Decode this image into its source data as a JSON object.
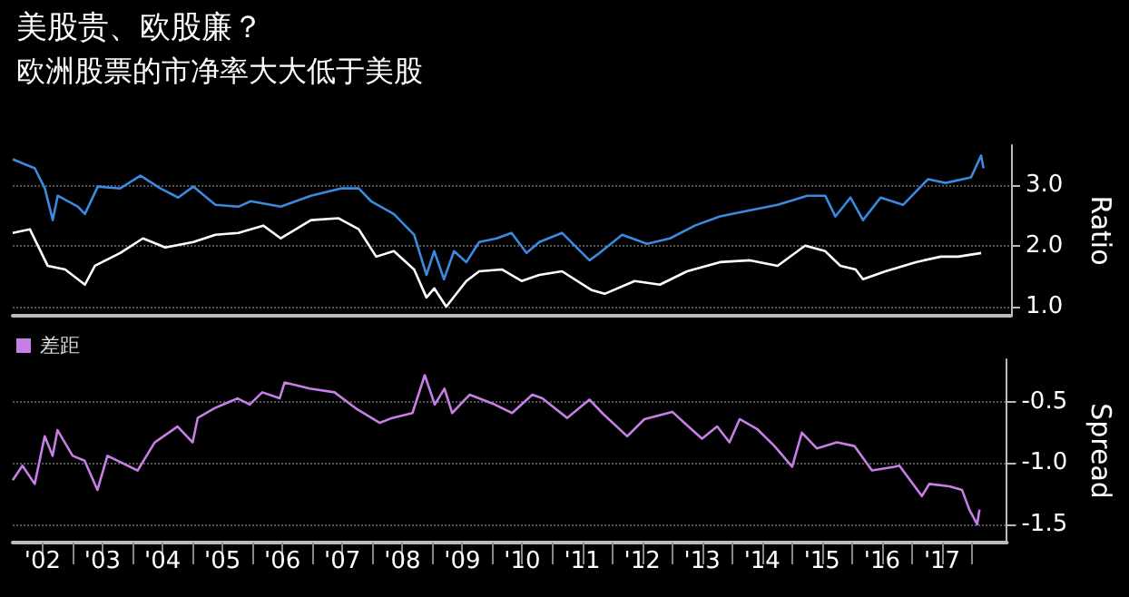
{
  "chart_data": [
    {
      "type": "line",
      "title": "美股贵、欧股廉？",
      "subtitle": "欧洲股票的市净率大大低于美股",
      "ylabel": "Ratio",
      "xlim": [
        "2002-01-01",
        "2018-08-01"
      ],
      "ylim": [
        0.85,
        3.65
      ],
      "yticks": [
        {
          "value": 1,
          "label": "1.0"
        },
        {
          "value": 2,
          "label": "2.0"
        },
        {
          "value": 3,
          "label": "3.0"
        }
      ],
      "tick_labels": "y",
      "grid": "y",
      "legend": false,
      "marker": "none",
      "line_style": "solid",
      "series": [
        {
          "color": "#ffffff",
          "x": [
            "2002-01-01",
            "2002-04-15",
            "2002-08-01",
            "2002-11-15",
            "2003-03-15",
            "2003-05-15",
            "2003-10-15",
            "2004-03-01",
            "2004-07-15",
            "2005-01-01",
            "2005-05-15",
            "2005-10-01",
            "2006-03-01",
            "2006-06-15",
            "2006-12-15",
            "2007-06-01",
            "2007-10-01",
            "2008-01-15",
            "2008-05-01",
            "2008-09-01",
            "2008-11-15",
            "2009-01-01",
            "2009-03-15",
            "2009-07-15",
            "2009-10-01",
            "2010-02-15",
            "2010-06-15",
            "2010-10-01",
            "2011-02-15",
            "2011-08-15",
            "2011-11-01",
            "2012-05-01",
            "2012-10-01",
            "2013-03-15",
            "2013-10-01",
            "2014-04-01",
            "2014-09-15",
            "2015-03-01",
            "2015-07-01",
            "2015-10-01",
            "2016-01-01",
            "2016-02-15",
            "2016-07-01",
            "2017-01-01",
            "2017-06-01",
            "2017-09-15",
            "2018-02-01"
          ],
          "values": [
            2.21,
            2.27,
            1.67,
            1.61,
            1.36,
            1.67,
            1.88,
            2.12,
            1.97,
            2.06,
            2.18,
            2.21,
            2.33,
            2.12,
            2.42,
            2.45,
            2.27,
            1.82,
            1.91,
            1.61,
            1.15,
            1.3,
            1.0,
            1.42,
            1.58,
            1.61,
            1.42,
            1.52,
            1.58,
            1.27,
            1.21,
            1.42,
            1.36,
            1.58,
            1.73,
            1.76,
            1.67,
            2.0,
            1.91,
            1.67,
            1.61,
            1.45,
            1.58,
            1.73,
            1.82,
            1.82,
            1.88
          ]
        },
        {
          "color": "#3a8ae0",
          "x": [
            "2002-01-01",
            "2002-05-15",
            "2002-07-15",
            "2002-09-01",
            "2002-10-01",
            "2003-02-01",
            "2003-03-15",
            "2003-06-01",
            "2003-10-15",
            "2004-02-15",
            "2004-06-15",
            "2004-10-01",
            "2005-01-01",
            "2005-05-15",
            "2005-10-01",
            "2005-12-15",
            "2006-06-15",
            "2006-12-15",
            "2007-06-15",
            "2007-10-01",
            "2007-12-15",
            "2008-05-01",
            "2008-09-01",
            "2008-11-15",
            "2009-01-01",
            "2009-03-01",
            "2009-05-01",
            "2009-07-15",
            "2009-10-01",
            "2010-01-15",
            "2010-04-15",
            "2010-07-15",
            "2010-10-01",
            "2011-02-15",
            "2011-08-01",
            "2011-10-01",
            "2012-02-15",
            "2012-07-15",
            "2012-12-01",
            "2013-05-01",
            "2013-10-01",
            "2014-04-01",
            "2014-09-15",
            "2015-03-15",
            "2015-07-01",
            "2015-09-01",
            "2015-12-01",
            "2016-02-15",
            "2016-06-01",
            "2016-10-15",
            "2017-03-15",
            "2017-07-01",
            "2017-12-01",
            "2018-02-01",
            "2018-02-15"
          ],
          "values": [
            3.42,
            3.27,
            2.94,
            2.42,
            2.82,
            2.64,
            2.52,
            2.97,
            2.94,
            3.15,
            2.94,
            2.79,
            2.97,
            2.67,
            2.64,
            2.73,
            2.64,
            2.82,
            2.94,
            2.94,
            2.73,
            2.52,
            2.18,
            1.52,
            1.91,
            1.45,
            1.91,
            1.73,
            2.06,
            2.12,
            2.21,
            1.88,
            2.06,
            2.21,
            1.76,
            1.88,
            2.18,
            2.03,
            2.12,
            2.33,
            2.48,
            2.58,
            2.67,
            2.82,
            2.82,
            2.48,
            2.79,
            2.42,
            2.79,
            2.67,
            3.09,
            3.03,
            3.12,
            3.48,
            3.27
          ]
        }
      ]
    },
    {
      "type": "line",
      "ylabel": "Spread",
      "xlim": [
        "2002-01-01",
        "2018-08-01"
      ],
      "ylim": [
        -1.65,
        -0.15
      ],
      "xticks": [
        {
          "value": "2002-07-02",
          "label": "'02"
        },
        {
          "value": "2003-01-01",
          "label": null
        },
        {
          "value": "2003-07-02",
          "label": "'03"
        },
        {
          "value": "2004-01-01",
          "label": null
        },
        {
          "value": "2004-07-02",
          "label": "'04"
        },
        {
          "value": "2005-01-01",
          "label": null
        },
        {
          "value": "2005-07-02",
          "label": "'05"
        },
        {
          "value": "2006-01-01",
          "label": null
        },
        {
          "value": "2006-07-02",
          "label": "'06"
        },
        {
          "value": "2007-01-01",
          "label": null
        },
        {
          "value": "2007-07-02",
          "label": "'07"
        },
        {
          "value": "2008-01-01",
          "label": null
        },
        {
          "value": "2008-07-02",
          "label": "'08"
        },
        {
          "value": "2009-01-01",
          "label": null
        },
        {
          "value": "2009-07-02",
          "label": "'09"
        },
        {
          "value": "2010-01-01",
          "label": null
        },
        {
          "value": "2010-07-02",
          "label": "'10"
        },
        {
          "value": "2011-01-01",
          "label": null
        },
        {
          "value": "2011-07-02",
          "label": "'11"
        },
        {
          "value": "2012-01-01",
          "label": null
        },
        {
          "value": "2012-07-02",
          "label": "'12"
        },
        {
          "value": "2013-01-01",
          "label": null
        },
        {
          "value": "2013-07-02",
          "label": "'13"
        },
        {
          "value": "2014-01-01",
          "label": null
        },
        {
          "value": "2014-07-02",
          "label": "'14"
        },
        {
          "value": "2015-01-01",
          "label": null
        },
        {
          "value": "2015-07-02",
          "label": "'15"
        },
        {
          "value": "2016-01-01",
          "label": null
        },
        {
          "value": "2016-07-02",
          "label": "'16"
        },
        {
          "value": "2017-01-01",
          "label": null
        },
        {
          "value": "2017-07-02",
          "label": "'17"
        },
        {
          "value": "2018-01-01",
          "label": null
        }
      ],
      "yticks": [
        -0.5,
        {
          "value": -1,
          "label": "-1.0"
        },
        -1.5
      ],
      "grid": "y",
      "legend": "top left",
      "marker": "none",
      "line_style": "solid",
      "series": [
        {
          "name": "差距",
          "color": "#c77ee6",
          "x": [
            "2002-01-01",
            "2002-03-01",
            "2002-05-15",
            "2002-07-15",
            "2002-09-01",
            "2002-10-01",
            "2003-01-01",
            "2003-03-15",
            "2003-06-01",
            "2003-08-01",
            "2004-02-01",
            "2004-05-15",
            "2004-10-01",
            "2005-01-01",
            "2005-02-01",
            "2005-05-15",
            "2005-10-01",
            "2005-12-15",
            "2006-03-01",
            "2006-06-15",
            "2006-07-15",
            "2006-12-15",
            "2007-05-15",
            "2007-10-01",
            "2008-02-15",
            "2008-05-01",
            "2008-09-01",
            "2008-11-15",
            "2009-01-15",
            "2009-03-15",
            "2009-05-01",
            "2009-08-15",
            "2010-01-15",
            "2010-05-01",
            "2010-09-01",
            "2010-11-01",
            "2011-04-01",
            "2011-08-15",
            "2011-11-01",
            "2012-04-01",
            "2012-07-15",
            "2013-01-01",
            "2013-03-15",
            "2013-07-01",
            "2013-10-01",
            "2013-12-15",
            "2014-02-15",
            "2014-06-01",
            "2014-09-15",
            "2015-01-01",
            "2015-03-01",
            "2015-06-01",
            "2015-10-01",
            "2016-01-15",
            "2016-05-01",
            "2016-09-15",
            "2016-10-15",
            "2017-03-01",
            "2017-04-15",
            "2017-08-15",
            "2017-11-01",
            "2017-12-15",
            "2018-02-01",
            "2018-02-15"
          ],
          "values": [
            -1.14,
            -1.02,
            -1.17,
            -0.78,
            -0.94,
            -0.73,
            -0.94,
            -0.98,
            -1.22,
            -0.94,
            -1.06,
            -0.83,
            -0.7,
            -0.83,
            -0.63,
            -0.55,
            -0.47,
            -0.52,
            -0.42,
            -0.47,
            -0.34,
            -0.39,
            -0.42,
            -0.56,
            -0.67,
            -0.63,
            -0.59,
            -0.28,
            -0.52,
            -0.39,
            -0.59,
            -0.44,
            -0.52,
            -0.59,
            -0.44,
            -0.47,
            -0.63,
            -0.48,
            -0.59,
            -0.78,
            -0.64,
            -0.58,
            -0.67,
            -0.8,
            -0.7,
            -0.83,
            -0.64,
            -0.72,
            -0.86,
            -1.03,
            -0.75,
            -0.88,
            -0.83,
            -0.86,
            -1.06,
            -1.03,
            -1.02,
            -1.27,
            -1.17,
            -1.19,
            -1.22,
            -1.38,
            -1.5,
            -1.38
          ]
        }
      ]
    }
  ]
}
